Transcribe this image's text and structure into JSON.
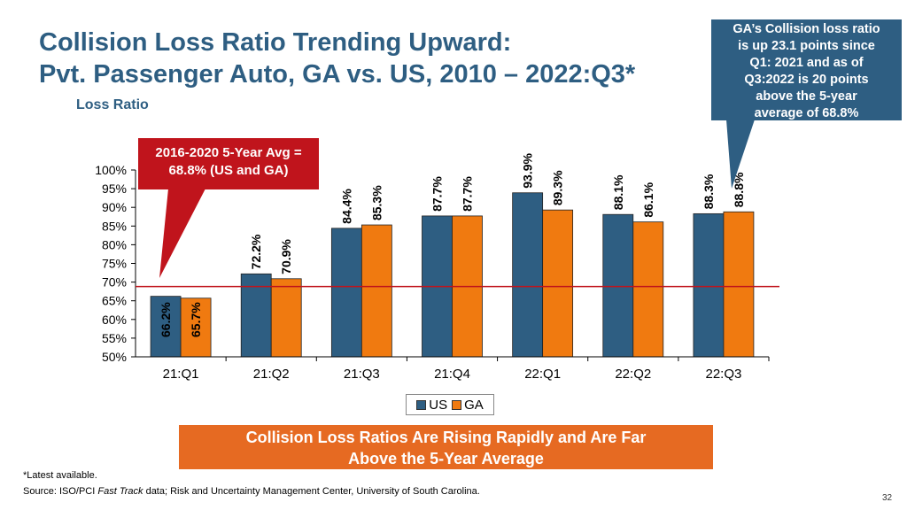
{
  "slide": {
    "title_line1": "Collision Loss Ratio Trending Upward:",
    "title_line2": "Pvt. Passenger Auto, GA vs. US, 2010 – 2022:Q3*",
    "callout_ga": [
      "GA’s Collision loss ratio",
      "is up 23.1 points since",
      "Q1: 2021 and as of",
      "Q3:2022 is 20 points",
      "above the 5-year",
      "average of 68.8%"
    ],
    "callout_avg": [
      "2016-2020 5-Year Avg =",
      "68.8% (US and GA)"
    ],
    "banner": [
      "Collision Loss Ratios Are Rising Rapidly and Are Far",
      "Above the 5-Year Average"
    ],
    "footnote": "*Latest available.",
    "source_prefix": "Source: ISO/PCI ",
    "source_italic": "Fast Track",
    "source_suffix": " data; Risk and Uncertainty Management Center, University of South Carolina.",
    "page_number": "32"
  },
  "colors": {
    "us": "#2e5e82",
    "ga": "#f07a10",
    "reference": "#c0141c",
    "title": "#2e5e82"
  },
  "chart_data": {
    "type": "bar",
    "ylabel": "Loss Ratio",
    "categories": [
      "21:Q1",
      "21:Q2",
      "21:Q3",
      "21:Q4",
      "22:Q1",
      "22:Q2",
      "22:Q3"
    ],
    "series": [
      {
        "name": "US",
        "values": [
          66.2,
          72.2,
          84.4,
          87.7,
          93.9,
          88.1,
          88.3
        ]
      },
      {
        "name": "GA",
        "values": [
          65.7,
          70.9,
          85.3,
          87.7,
          89.3,
          86.1,
          88.8
        ]
      }
    ],
    "data_labels": {
      "US": [
        "66.2%",
        "72.2%",
        "84.4%",
        "87.7%",
        "93.9%",
        "88.1%",
        "88.3%"
      ],
      "GA": [
        "65.7%",
        "70.9%",
        "85.3%",
        "87.7%",
        "89.3%",
        "86.1%",
        "88.8%"
      ]
    },
    "reference_line": {
      "value": 68.8,
      "label": "2016-2020 5-Year Avg"
    },
    "ylim": [
      50,
      100
    ],
    "yticks": [
      50,
      55,
      60,
      65,
      70,
      75,
      80,
      85,
      90,
      95,
      100
    ],
    "ytick_labels": [
      "50%",
      "55%",
      "60%",
      "65%",
      "70%",
      "75%",
      "80%",
      "85%",
      "90%",
      "95%",
      "100%"
    ],
    "legend": [
      "US",
      "GA"
    ],
    "legend_position": "bottom-center"
  }
}
